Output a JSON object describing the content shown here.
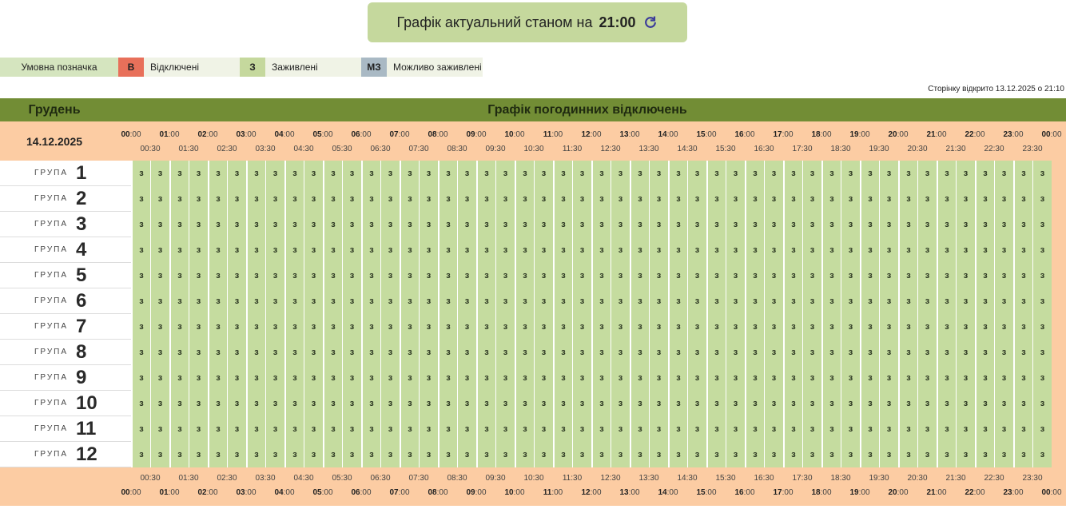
{
  "header": {
    "title": "Графік актуальний станом на",
    "time": "21:00"
  },
  "legend": {
    "title": "Умовна позначка",
    "items": [
      {
        "code": "В",
        "label": "Відключені"
      },
      {
        "code": "З",
        "label": "Заживлені"
      },
      {
        "code": "МЗ",
        "label": "Можливо заживлені"
      }
    ]
  },
  "opened_note": "Сторінку відкрито 13.12.2025 о 21:10",
  "table": {
    "month": "Грудень",
    "heading": "Графік погодинних відключень",
    "date": "14.12.2025",
    "hours": [
      "00",
      "01",
      "02",
      "03",
      "04",
      "05",
      "06",
      "07",
      "08",
      "09",
      "10",
      "11",
      "12",
      "13",
      "14",
      "15",
      "16",
      "17",
      "18",
      "19",
      "20",
      "21",
      "22",
      "23",
      "00"
    ],
    "minute_suffix": ":00",
    "half_hours": [
      "00:30",
      "01:30",
      "02:30",
      "03:30",
      "04:30",
      "05:30",
      "06:30",
      "07:30",
      "08:30",
      "09:30",
      "10:30",
      "11:30",
      "12:30",
      "13:30",
      "14:30",
      "15:30",
      "16:30",
      "17:30",
      "18:30",
      "19:30",
      "20:30",
      "21:30",
      "22:30",
      "23:30"
    ],
    "group_word": "ГРУПА",
    "rows": [
      {
        "group": "1",
        "cells": [
          "з",
          "з",
          "з",
          "з",
          "з",
          "з",
          "з",
          "з",
          "з",
          "з",
          "з",
          "з",
          "з",
          "з",
          "з",
          "з",
          "з",
          "з",
          "з",
          "з",
          "з",
          "з",
          "з",
          "з",
          "з",
          "з",
          "з",
          "з",
          "з",
          "з",
          "з",
          "з",
          "з",
          "з",
          "з",
          "з",
          "з",
          "з",
          "з",
          "з",
          "з",
          "з",
          "з",
          "з",
          "з",
          "з",
          "з",
          "з"
        ]
      },
      {
        "group": "2",
        "cells": [
          "з",
          "з",
          "з",
          "з",
          "з",
          "з",
          "з",
          "з",
          "з",
          "з",
          "з",
          "з",
          "з",
          "з",
          "з",
          "з",
          "з",
          "з",
          "з",
          "з",
          "з",
          "з",
          "з",
          "з",
          "з",
          "з",
          "з",
          "з",
          "з",
          "з",
          "з",
          "з",
          "з",
          "з",
          "з",
          "з",
          "з",
          "з",
          "з",
          "з",
          "з",
          "з",
          "з",
          "з",
          "з",
          "з",
          "з",
          "з"
        ]
      },
      {
        "group": "3",
        "cells": [
          "з",
          "з",
          "з",
          "з",
          "з",
          "з",
          "з",
          "з",
          "з",
          "з",
          "з",
          "з",
          "з",
          "з",
          "з",
          "з",
          "з",
          "з",
          "з",
          "з",
          "з",
          "з",
          "з",
          "з",
          "з",
          "з",
          "з",
          "з",
          "з",
          "з",
          "з",
          "з",
          "з",
          "з",
          "з",
          "з",
          "з",
          "з",
          "з",
          "з",
          "з",
          "з",
          "з",
          "з",
          "з",
          "з",
          "з",
          "з"
        ]
      },
      {
        "group": "4",
        "cells": [
          "з",
          "з",
          "з",
          "з",
          "з",
          "з",
          "з",
          "з",
          "з",
          "з",
          "з",
          "з",
          "з",
          "з",
          "з",
          "з",
          "з",
          "з",
          "з",
          "з",
          "з",
          "з",
          "з",
          "з",
          "з",
          "з",
          "з",
          "з",
          "з",
          "з",
          "з",
          "з",
          "з",
          "з",
          "з",
          "з",
          "з",
          "з",
          "з",
          "з",
          "з",
          "з",
          "з",
          "з",
          "з",
          "з",
          "з",
          "з"
        ]
      },
      {
        "group": "5",
        "cells": [
          "з",
          "з",
          "з",
          "з",
          "з",
          "з",
          "з",
          "з",
          "з",
          "з",
          "з",
          "з",
          "з",
          "з",
          "з",
          "з",
          "з",
          "з",
          "з",
          "з",
          "з",
          "з",
          "з",
          "з",
          "з",
          "з",
          "з",
          "з",
          "з",
          "з",
          "з",
          "з",
          "з",
          "з",
          "з",
          "з",
          "з",
          "з",
          "з",
          "з",
          "з",
          "з",
          "з",
          "з",
          "з",
          "з",
          "з",
          "з"
        ]
      },
      {
        "group": "6",
        "cells": [
          "з",
          "з",
          "з",
          "з",
          "з",
          "з",
          "з",
          "з",
          "з",
          "з",
          "з",
          "з",
          "з",
          "з",
          "з",
          "з",
          "з",
          "з",
          "з",
          "з",
          "з",
          "з",
          "з",
          "з",
          "з",
          "з",
          "з",
          "з",
          "з",
          "з",
          "з",
          "з",
          "з",
          "з",
          "з",
          "з",
          "з",
          "з",
          "з",
          "з",
          "з",
          "з",
          "з",
          "з",
          "з",
          "з",
          "з",
          "з"
        ]
      },
      {
        "group": "7",
        "cells": [
          "з",
          "з",
          "з",
          "з",
          "з",
          "з",
          "з",
          "з",
          "з",
          "з",
          "з",
          "з",
          "з",
          "з",
          "з",
          "з",
          "з",
          "з",
          "з",
          "з",
          "з",
          "з",
          "з",
          "з",
          "з",
          "з",
          "з",
          "з",
          "з",
          "з",
          "з",
          "з",
          "з",
          "з",
          "з",
          "з",
          "з",
          "з",
          "з",
          "з",
          "з",
          "з",
          "з",
          "з",
          "з",
          "з",
          "з",
          "з"
        ]
      },
      {
        "group": "8",
        "cells": [
          "з",
          "з",
          "з",
          "з",
          "з",
          "з",
          "з",
          "з",
          "з",
          "з",
          "з",
          "з",
          "з",
          "з",
          "з",
          "з",
          "з",
          "з",
          "з",
          "з",
          "з",
          "з",
          "з",
          "з",
          "з",
          "з",
          "з",
          "з",
          "з",
          "з",
          "з",
          "з",
          "з",
          "з",
          "з",
          "з",
          "з",
          "з",
          "з",
          "з",
          "з",
          "з",
          "з",
          "з",
          "з",
          "з",
          "з",
          "з"
        ]
      },
      {
        "group": "9",
        "cells": [
          "з",
          "з",
          "з",
          "з",
          "з",
          "з",
          "з",
          "з",
          "з",
          "з",
          "з",
          "з",
          "з",
          "з",
          "з",
          "з",
          "з",
          "з",
          "з",
          "з",
          "з",
          "з",
          "з",
          "з",
          "з",
          "з",
          "з",
          "з",
          "з",
          "з",
          "з",
          "з",
          "з",
          "з",
          "з",
          "з",
          "з",
          "з",
          "з",
          "з",
          "з",
          "з",
          "з",
          "з",
          "з",
          "з",
          "з",
          "з"
        ]
      },
      {
        "group": "10",
        "cells": [
          "з",
          "з",
          "з",
          "з",
          "з",
          "з",
          "з",
          "з",
          "з",
          "з",
          "з",
          "з",
          "з",
          "з",
          "з",
          "з",
          "з",
          "з",
          "з",
          "з",
          "з",
          "з",
          "з",
          "з",
          "з",
          "з",
          "з",
          "з",
          "з",
          "з",
          "з",
          "з",
          "з",
          "з",
          "з",
          "з",
          "з",
          "з",
          "з",
          "з",
          "з",
          "з",
          "з",
          "з",
          "з",
          "з",
          "з",
          "з"
        ]
      },
      {
        "group": "11",
        "cells": [
          "з",
          "з",
          "з",
          "з",
          "з",
          "з",
          "з",
          "з",
          "з",
          "з",
          "з",
          "з",
          "з",
          "з",
          "з",
          "з",
          "з",
          "з",
          "з",
          "з",
          "з",
          "з",
          "з",
          "з",
          "з",
          "з",
          "з",
          "з",
          "з",
          "з",
          "з",
          "з",
          "з",
          "з",
          "з",
          "з",
          "з",
          "з",
          "з",
          "з",
          "з",
          "з",
          "з",
          "з",
          "з",
          "з",
          "з",
          "з"
        ]
      },
      {
        "group": "12",
        "cells": [
          "з",
          "з",
          "з",
          "з",
          "з",
          "з",
          "з",
          "з",
          "з",
          "з",
          "з",
          "з",
          "з",
          "з",
          "з",
          "з",
          "з",
          "з",
          "з",
          "з",
          "з",
          "з",
          "з",
          "з",
          "з",
          "з",
          "з",
          "з",
          "з",
          "з",
          "з",
          "з",
          "з",
          "з",
          "з",
          "з",
          "з",
          "з",
          "з",
          "з",
          "з",
          "з",
          "з",
          "з",
          "з",
          "з",
          "з",
          "з"
        ]
      }
    ]
  }
}
